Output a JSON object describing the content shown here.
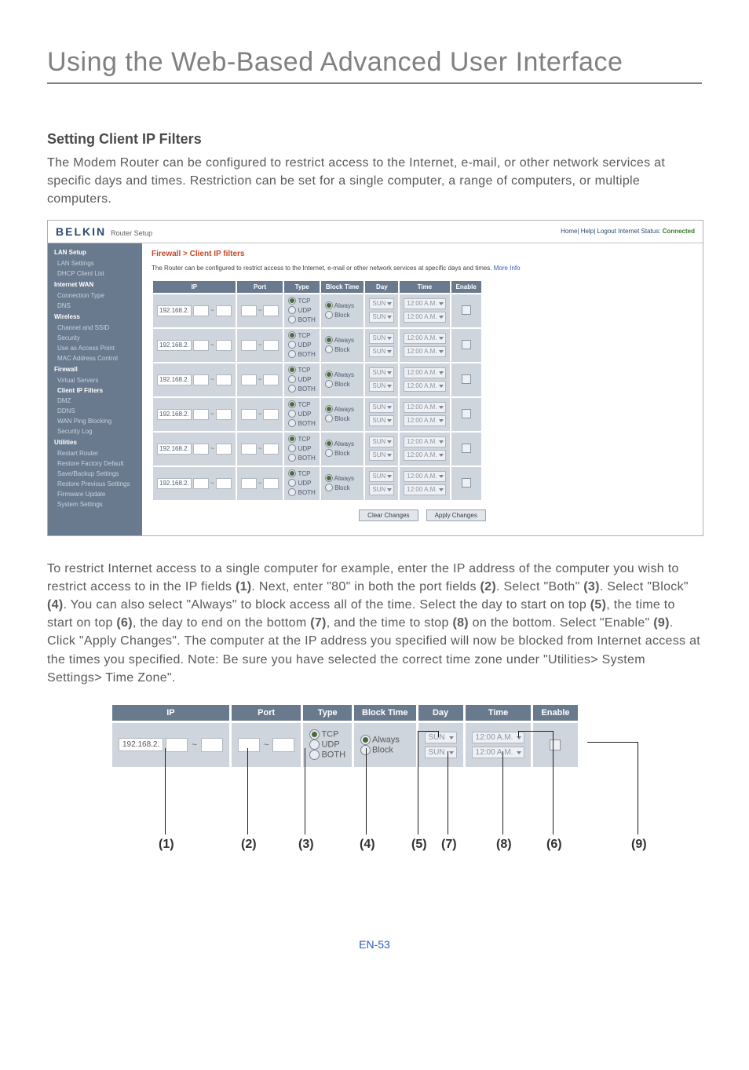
{
  "page": {
    "title": "Using the Web-Based Advanced User Interface",
    "section_title": "Setting Client IP Filters",
    "intro": "The Modem Router can be configured to restrict access to the Internet, e-mail, or other network services at specific days and times. Restriction can be set for a single computer, a range of computers, or multiple computers.",
    "body2_parts": [
      "To restrict Internet access to a single computer for example, enter the IP address of the computer you wish to restrict access to in the IP fields ",
      "(1)",
      ". Next, enter \"80\" in both the port fields ",
      "(2)",
      ". Select \"Both\" ",
      "(3)",
      ". Select \"Block\" ",
      "(4)",
      ". You can also select \"Always\" to block access all of the time. Select the day to start on top ",
      "(5)",
      ", the time to start on top ",
      "(6)",
      ", the day to end on the bottom ",
      "(7)",
      ", and the time to stop ",
      "(8)",
      " on the bottom. Select \"Enable\" ",
      "(9)",
      ". Click \"Apply Changes\". The computer at the IP address you specified will now be blocked from Internet access at the times you specified. Note: Be sure you have selected the correct time zone under \"Utilities> System Settings> Time Zone\"."
    ],
    "footer": "EN-53"
  },
  "router": {
    "brand": "BELKIN",
    "brand_sub": "Router Setup",
    "status_prefix": "Home| Help| Logout   Internet Status: ",
    "status_value": "Connected",
    "breadcrumb": "Firewall > Client IP filters",
    "desc": "The Router can be configured to restrict access to the Internet, e-mail or other network services at specific days and times. ",
    "more": "More Info",
    "sidebar": [
      {
        "t": "g",
        "l": "LAN Setup"
      },
      {
        "t": "i",
        "l": "LAN Settings"
      },
      {
        "t": "i",
        "l": "DHCP Client List"
      },
      {
        "t": "g",
        "l": "Internet WAN"
      },
      {
        "t": "i",
        "l": "Connection Type"
      },
      {
        "t": "i",
        "l": "DNS"
      },
      {
        "t": "g",
        "l": "Wireless"
      },
      {
        "t": "i",
        "l": "Channel and SSID"
      },
      {
        "t": "i",
        "l": "Security"
      },
      {
        "t": "i",
        "l": "Use as Access Point"
      },
      {
        "t": "i",
        "l": "MAC Address Control"
      },
      {
        "t": "g",
        "l": "Firewall"
      },
      {
        "t": "i",
        "l": "Virtual Servers"
      },
      {
        "t": "h",
        "l": "Client IP Filters"
      },
      {
        "t": "i",
        "l": "DMZ"
      },
      {
        "t": "i",
        "l": "DDNS"
      },
      {
        "t": "i",
        "l": "WAN Ping Blocking"
      },
      {
        "t": "i",
        "l": "Security Log"
      },
      {
        "t": "g",
        "l": "Utilities"
      },
      {
        "t": "i",
        "l": "Restart Router"
      },
      {
        "t": "i",
        "l": "Restore Factory Default"
      },
      {
        "t": "i",
        "l": "Save/Backup Settings"
      },
      {
        "t": "i",
        "l": "Restore Previous Settings"
      },
      {
        "t": "i",
        "l": "Firmware Update"
      },
      {
        "t": "i",
        "l": "System Settings"
      }
    ],
    "table": {
      "headers": [
        "IP",
        "Port",
        "Type",
        "Block Time",
        "Day",
        "Time",
        "Enable"
      ],
      "ip_prefix": "192.168.2.",
      "type_opts": [
        "TCP",
        "UDP",
        "BOTH"
      ],
      "block_opts": [
        "Always",
        "Block"
      ],
      "day_opt": "SUN",
      "time_opt": "12:00 A.M.",
      "rows": 6,
      "buttons": {
        "clear": "Clear Changes",
        "apply": "Apply Changes"
      }
    }
  },
  "callout": {
    "headers": [
      "IP",
      "Port",
      "Type",
      "Block Time",
      "Day",
      "Time",
      "Enable"
    ],
    "ip_prefix": "192.168.2.",
    "type_opts": [
      "TCP",
      "UDP",
      "BOTH"
    ],
    "block_opts": [
      "Always",
      "Block"
    ],
    "day_opt": "SUN",
    "time_opt": "12:00 A.M.",
    "numbers": [
      "(1)",
      "(2)",
      "(3)",
      "(4)",
      "(5)",
      "(7)",
      "(8)",
      "(6)",
      "(9)"
    ]
  },
  "style": {
    "header_bg": "#6a7a8e",
    "cell_bg": "#cfd5dc",
    "accent": "#c04a2a",
    "link": "#2b5ac0"
  }
}
